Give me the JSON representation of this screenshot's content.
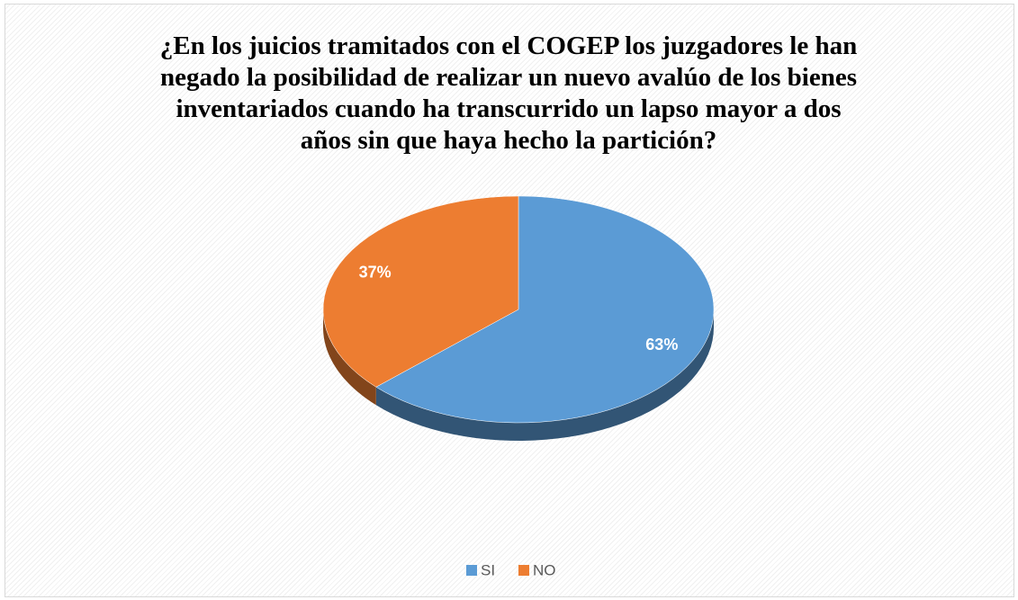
{
  "chart_data": {
    "type": "pie",
    "title": "¿En los juicios tramitados con el COGEP los juzgadores le han negado la posibilidad de realizar un nuevo avalúo de los bienes inventariados cuando ha transcurrido un lapso mayor a dos años sin que haya hecho la partición?",
    "categories": [
      "SI",
      "NO"
    ],
    "values": [
      63,
      37
    ],
    "value_labels": [
      "63%",
      "37%"
    ],
    "colors": [
      "#5b9bd5",
      "#ed7d31"
    ],
    "legend": "bottom"
  }
}
